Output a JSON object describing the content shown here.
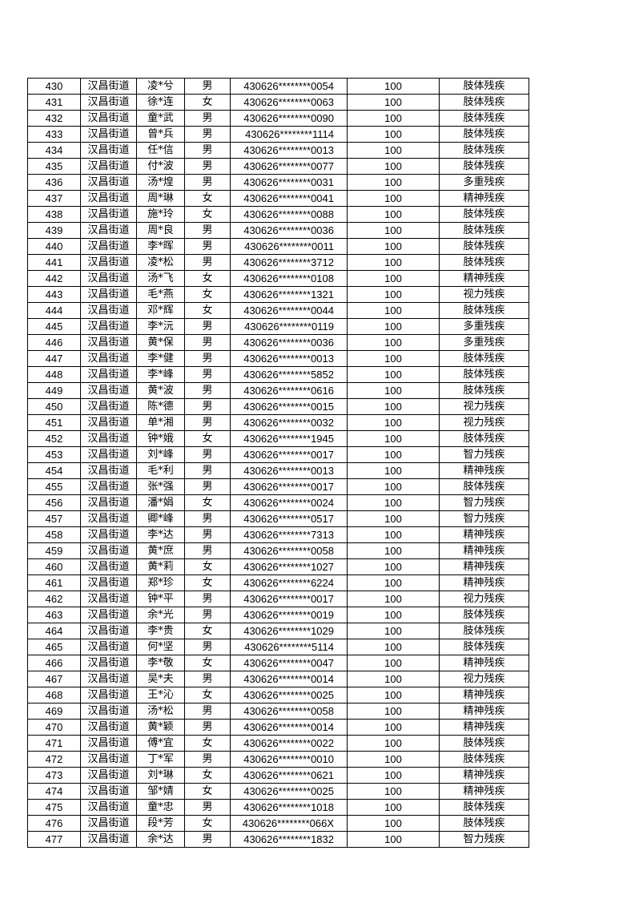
{
  "rows": [
    [
      "430",
      "汉昌街道",
      "凌*兮",
      "男",
      "430626********0054",
      "100",
      "肢体残疾"
    ],
    [
      "431",
      "汉昌街道",
      "徐*连",
      "女",
      "430626********0063",
      "100",
      "肢体残疾"
    ],
    [
      "432",
      "汉昌街道",
      "童*武",
      "男",
      "430626********0090",
      "100",
      "肢体残疾"
    ],
    [
      "433",
      "汉昌街道",
      "曾*兵",
      "男",
      "430626********1114",
      "100",
      "肢体残疾"
    ],
    [
      "434",
      "汉昌街道",
      "任*信",
      "男",
      "430626********0013",
      "100",
      "肢体残疾"
    ],
    [
      "435",
      "汉昌街道",
      "付*波",
      "男",
      "430626********0077",
      "100",
      "肢体残疾"
    ],
    [
      "436",
      "汉昌街道",
      "汤*煌",
      "男",
      "430626********0031",
      "100",
      "多重残疾"
    ],
    [
      "437",
      "汉昌街道",
      "周*琳",
      "女",
      "430626********0041",
      "100",
      "精神残疾"
    ],
    [
      "438",
      "汉昌街道",
      "施*玲",
      "女",
      "430626********0088",
      "100",
      "肢体残疾"
    ],
    [
      "439",
      "汉昌街道",
      "周*良",
      "男",
      "430626********0036",
      "100",
      "肢体残疾"
    ],
    [
      "440",
      "汉昌街道",
      "李*晖",
      "男",
      "430626********0011",
      "100",
      "肢体残疾"
    ],
    [
      "441",
      "汉昌街道",
      "凌*松",
      "男",
      "430626********3712",
      "100",
      "肢体残疾"
    ],
    [
      "442",
      "汉昌街道",
      "汤*飞",
      "女",
      "430626********0108",
      "100",
      "精神残疾"
    ],
    [
      "443",
      "汉昌街道",
      "毛*燕",
      "女",
      "430626********1321",
      "100",
      "视力残疾"
    ],
    [
      "444",
      "汉昌街道",
      "邓*辉",
      "女",
      "430626********0044",
      "100",
      "肢体残疾"
    ],
    [
      "445",
      "汉昌街道",
      "李*沅",
      "男",
      "430626********0119",
      "100",
      "多重残疾"
    ],
    [
      "446",
      "汉昌街道",
      "黄*保",
      "男",
      "430626********0036",
      "100",
      "多重残疾"
    ],
    [
      "447",
      "汉昌街道",
      "李*健",
      "男",
      "430626********0013",
      "100",
      "肢体残疾"
    ],
    [
      "448",
      "汉昌街道",
      "李*峰",
      "男",
      "430626********5852",
      "100",
      "肢体残疾"
    ],
    [
      "449",
      "汉昌街道",
      "黄*波",
      "男",
      "430626********0616",
      "100",
      "肢体残疾"
    ],
    [
      "450",
      "汉昌街道",
      "陈*德",
      "男",
      "430626********0015",
      "100",
      "视力残疾"
    ],
    [
      "451",
      "汉昌街道",
      "单*湘",
      "男",
      "430626********0032",
      "100",
      "视力残疾"
    ],
    [
      "452",
      "汉昌街道",
      "钟*娥",
      "女",
      "430626********1945",
      "100",
      "肢体残疾"
    ],
    [
      "453",
      "汉昌街道",
      "刘*峰",
      "男",
      "430626********0017",
      "100",
      "智力残疾"
    ],
    [
      "454",
      "汉昌街道",
      "毛*利",
      "男",
      "430626********0013",
      "100",
      "精神残疾"
    ],
    [
      "455",
      "汉昌街道",
      "张*强",
      "男",
      "430626********0017",
      "100",
      "肢体残疾"
    ],
    [
      "456",
      "汉昌街道",
      "潘*娟",
      "女",
      "430626********0024",
      "100",
      "智力残疾"
    ],
    [
      "457",
      "汉昌街道",
      "卿*峰",
      "男",
      "430626********0517",
      "100",
      "智力残疾"
    ],
    [
      "458",
      "汉昌街道",
      "李*达",
      "男",
      "430626********7313",
      "100",
      "精神残疾"
    ],
    [
      "459",
      "汉昌街道",
      "黄*庶",
      "男",
      "430626********0058",
      "100",
      "精神残疾"
    ],
    [
      "460",
      "汉昌街道",
      "黄*莉",
      "女",
      "430626********1027",
      "100",
      "精神残疾"
    ],
    [
      "461",
      "汉昌街道",
      "郑*珍",
      "女",
      "430626********6224",
      "100",
      "精神残疾"
    ],
    [
      "462",
      "汉昌街道",
      "钟*平",
      "男",
      "430626********0017",
      "100",
      "视力残疾"
    ],
    [
      "463",
      "汉昌街道",
      "余*光",
      "男",
      "430626********0019",
      "100",
      "肢体残疾"
    ],
    [
      "464",
      "汉昌街道",
      "李*贵",
      "女",
      "430626********1029",
      "100",
      "肢体残疾"
    ],
    [
      "465",
      "汉昌街道",
      "何*坚",
      "男",
      "430626********5114",
      "100",
      "肢体残疾"
    ],
    [
      "466",
      "汉昌街道",
      "李*敬",
      "女",
      "430626********0047",
      "100",
      "精神残疾"
    ],
    [
      "467",
      "汉昌街道",
      "吴*夫",
      "男",
      "430626********0014",
      "100",
      "视力残疾"
    ],
    [
      "468",
      "汉昌街道",
      "王*沁",
      "女",
      "430626********0025",
      "100",
      "精神残疾"
    ],
    [
      "469",
      "汉昌街道",
      "汤*松",
      "男",
      "430626********0058",
      "100",
      "精神残疾"
    ],
    [
      "470",
      "汉昌街道",
      "黄*颖",
      "男",
      "430626********0014",
      "100",
      "精神残疾"
    ],
    [
      "471",
      "汉昌街道",
      "傅*宜",
      "女",
      "430626********0022",
      "100",
      "肢体残疾"
    ],
    [
      "472",
      "汉昌街道",
      "丁*军",
      "男",
      "430626********0010",
      "100",
      "肢体残疾"
    ],
    [
      "473",
      "汉昌街道",
      "刘*琳",
      "女",
      "430626********0621",
      "100",
      "精神残疾"
    ],
    [
      "474",
      "汉昌街道",
      "邹*婧",
      "女",
      "430626********0025",
      "100",
      "精神残疾"
    ],
    [
      "475",
      "汉昌街道",
      "童*忠",
      "男",
      "430626********1018",
      "100",
      "肢体残疾"
    ],
    [
      "476",
      "汉昌街道",
      "段*芳",
      "女",
      "430626********066X",
      "100",
      "肢体残疾"
    ],
    [
      "477",
      "汉昌街道",
      "余*达",
      "男",
      "430626********1832",
      "100",
      "智力残疾"
    ]
  ]
}
